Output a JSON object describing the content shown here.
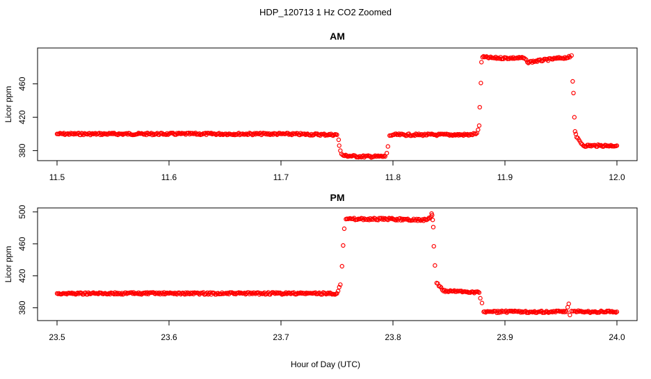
{
  "suptitle": "HDP_120713  1 Hz CO2 Zoomed",
  "xlabel": "Hour of Day (UTC)",
  "chart_data": [
    {
      "type": "scatter",
      "title": "AM",
      "ylabel": "Licor ppm",
      "xlim": [
        11.5,
        12.0
      ],
      "ylim": [
        368,
        503
      ],
      "xticks": [
        11.5,
        11.6,
        11.7,
        11.8,
        11.9,
        12.0
      ],
      "xtick_labels": [
        "11.5",
        "11.6",
        "11.7",
        "11.8",
        "11.9",
        "12.0"
      ],
      "yticks": [
        380,
        420,
        460
      ],
      "ytick_labels": [
        "380",
        "420",
        "460"
      ],
      "marker_color": "#ff0000",
      "series": [
        {
          "x": [
            11.5,
            11.55,
            11.6,
            11.65,
            11.7,
            11.75,
            11.7515,
            11.752,
            11.753,
            11.754,
            11.756,
            11.77,
            11.785,
            11.793,
            11.7945,
            11.7955,
            11.797,
            11.8,
            11.84,
            11.87,
            11.875,
            11.876,
            11.877,
            11.8775,
            11.8785,
            11.879,
            11.88,
            11.89,
            11.917,
            11.92,
            11.95,
            11.958,
            11.9595,
            11.9605,
            11.9612,
            11.962,
            11.9626,
            11.9633,
            11.964,
            11.97,
            11.985,
            12.0
          ],
          "y": [
            400,
            400,
            400,
            400,
            400,
            399,
            393,
            386,
            380,
            376,
            374,
            373,
            373,
            373,
            377,
            385,
            398,
            399,
            399,
            399,
            401,
            405,
            410,
            432,
            461,
            486,
            492,
            491,
            491,
            486,
            491,
            492,
            494,
            463,
            449,
            420,
            403,
            400,
            396,
            386,
            386,
            386
          ]
        }
      ]
    },
    {
      "type": "scatter",
      "title": "PM",
      "ylabel": "Licor ppm",
      "xlim": [
        23.5,
        24.0
      ],
      "ylim": [
        364,
        505
      ],
      "xticks": [
        23.5,
        23.6,
        23.7,
        23.8,
        23.9,
        24.0
      ],
      "xtick_labels": [
        "23.5",
        "23.6",
        "23.7",
        "23.8",
        "23.9",
        "24.0"
      ],
      "yticks": [
        380,
        420,
        460,
        500
      ],
      "ytick_labels": [
        "380",
        "420",
        "460",
        "500"
      ],
      "marker_color": "#ff0000",
      "series": [
        {
          "x": [
            23.5,
            23.55,
            23.6,
            23.65,
            23.7,
            23.75,
            23.753,
            23.7545,
            23.7555,
            23.7565,
            23.758,
            23.77,
            23.8,
            23.83,
            23.834,
            23.8345,
            23.835,
            23.8355,
            23.836,
            23.8365,
            23.8375,
            23.839,
            23.845,
            23.87,
            23.877,
            23.878,
            23.8795,
            23.881,
            23.9,
            23.93,
            23.955,
            23.957,
            23.958,
            23.9595,
            23.962,
            23.97,
            24.0
          ],
          "y": [
            398,
            398,
            398,
            398,
            398,
            398,
            409,
            432,
            458,
            479,
            491,
            491,
            491,
            490,
            494,
            498,
            496,
            490,
            481,
            457,
            433,
            411,
            401,
            400,
            399,
            392,
            386,
            375,
            375,
            375,
            375,
            385,
            371,
            376,
            376,
            375,
            375
          ]
        }
      ]
    }
  ]
}
